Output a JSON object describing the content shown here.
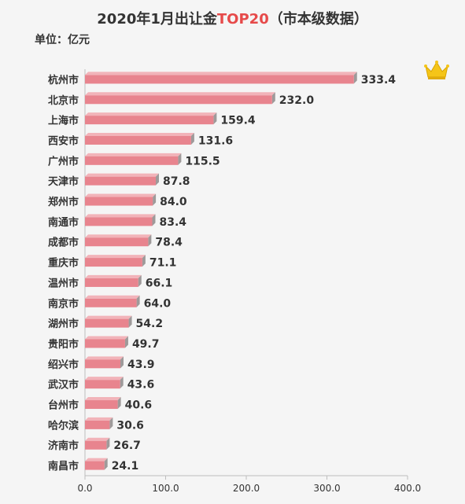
{
  "header": {
    "title_part1": "2020年1月出让金",
    "title_highlight": "TOP20",
    "title_part2": "（市本级数据）",
    "unit": "单位：亿元"
  },
  "colors": {
    "bar": "#e8848e",
    "bar_side": "#9e9a9a",
    "title_highlight": "#e64a4a",
    "crown": "#f5c518"
  },
  "icons": {
    "top_rank": "crown-icon"
  },
  "chart_data": {
    "type": "bar",
    "orientation": "horizontal",
    "title": "2020年1月出让金TOP20 （市本级数据）",
    "unit": "单位：亿元",
    "categories": [
      "杭州市",
      "北京市",
      "上海市",
      "西安市",
      "广州市",
      "天津市",
      "郑州市",
      "南通市",
      "成都市",
      "重庆市",
      "温州市",
      "南京市",
      "湖州市",
      "贵阳市",
      "绍兴市",
      "武汉市",
      "台州市",
      "哈尔滨",
      "济南市",
      "南昌市"
    ],
    "values": [
      333.4,
      232.0,
      159.4,
      131.6,
      115.5,
      87.8,
      84.0,
      83.4,
      78.4,
      71.1,
      66.1,
      64.0,
      54.2,
      49.7,
      43.9,
      43.6,
      40.6,
      30.6,
      26.7,
      24.1
    ],
    "value_labels": [
      "333.4",
      "232.0",
      "159.4",
      "131.6",
      "115.5",
      "87.8",
      "84.0",
      "83.4",
      "78.4",
      "71.1",
      "66.1",
      "64.0",
      "54.2",
      "49.7",
      "43.9",
      "43.6",
      "40.6",
      "30.6",
      "26.7",
      "24.1"
    ],
    "xlim": [
      0,
      400
    ],
    "xticks": [
      "0.0",
      "100.0",
      "200.0",
      "300.0",
      "400.0"
    ],
    "xtick_values": [
      0,
      100,
      200,
      300,
      400
    ],
    "grid": false,
    "legend": "none"
  }
}
